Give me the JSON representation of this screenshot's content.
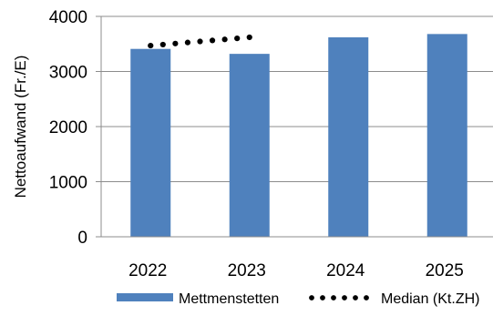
{
  "chart_data": {
    "type": "bar",
    "title": "",
    "xlabel": "",
    "ylabel": "Nettoaufwand (Fr./E)",
    "categories": [
      "2022",
      "2023",
      "2024",
      "2025"
    ],
    "ylim": [
      0,
      4000
    ],
    "yticks": [
      0,
      1000,
      2000,
      3000,
      4000
    ],
    "grid": true,
    "legend_position": "bottom",
    "series": [
      {
        "name": "Mettmenstetten",
        "type": "bar",
        "color": "#4f81bd",
        "values": [
          3410,
          3320,
          3620,
          3680
        ]
      },
      {
        "name": "Median (Kt.ZH)",
        "type": "dotted-line",
        "color": "#000000",
        "values": [
          3470,
          3620,
          null,
          null
        ]
      }
    ]
  }
}
